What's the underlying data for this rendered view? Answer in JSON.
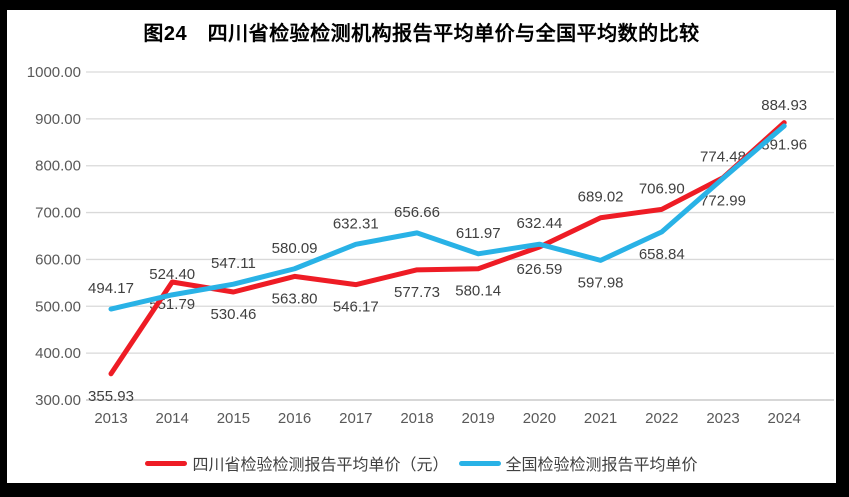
{
  "window": {
    "frame_color": "#000000",
    "background": "#ffffff"
  },
  "chart_data": {
    "type": "line",
    "title": "图24　四川省检验检测机构报告平均单价与全国平均数的比较",
    "categories": [
      "2013",
      "2014",
      "2015",
      "2016",
      "2017",
      "2018",
      "2019",
      "2020",
      "2021",
      "2022",
      "2023",
      "2024"
    ],
    "series": [
      {
        "id": "sichuan",
        "name": "四川省检验检测报告平均单价（元）",
        "color": "#ee1c25",
        "values": [
          355.93,
          551.79,
          530.46,
          563.8,
          546.17,
          577.73,
          580.14,
          626.59,
          689.02,
          706.9,
          774.48,
          891.96
        ],
        "label_positions": [
          "below",
          "below",
          "below",
          "below",
          "below",
          "below",
          "below",
          "below",
          "above",
          "above",
          "above",
          "below"
        ]
      },
      {
        "id": "national",
        "name": "全国检验检测报告平均单价",
        "color": "#29b2e6",
        "values": [
          494.17,
          524.4,
          547.11,
          580.09,
          632.31,
          656.66,
          611.97,
          632.44,
          597.98,
          658.84,
          772.99,
          884.93
        ],
        "label_positions": [
          "above",
          "above",
          "above",
          "above",
          "above",
          "above",
          "above",
          "above",
          "below",
          "below",
          "below",
          "above"
        ]
      }
    ],
    "ylim": [
      300,
      1000
    ],
    "ytick_step": 100,
    "ytick_decimals": 2,
    "grid": true,
    "legend_position": "bottom",
    "colors": {
      "grid_line": "#d9d9d9",
      "axis_line": "#bfbfbf",
      "tick_label": "#595959",
      "data_label": "#404040",
      "title": "#000000"
    }
  }
}
